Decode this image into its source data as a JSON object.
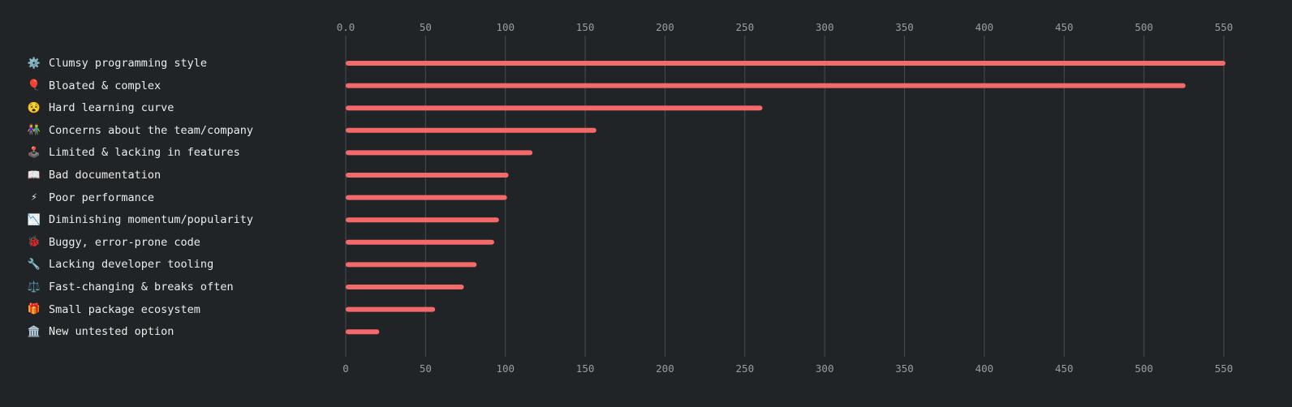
{
  "chart_data": {
    "type": "bar",
    "orientation": "horizontal",
    "bar_color": "#f46a6a",
    "grid": true,
    "xlim": [
      0,
      550
    ],
    "top_ticks": [
      "0.0",
      "50",
      "100",
      "150",
      "200",
      "250",
      "300",
      "350",
      "400",
      "450",
      "500",
      "550"
    ],
    "bottom_ticks": [
      "0",
      "50",
      "100",
      "150",
      "200",
      "250",
      "300",
      "350",
      "400",
      "450",
      "500",
      "550"
    ],
    "tick_values": [
      0,
      50,
      100,
      150,
      200,
      250,
      300,
      350,
      400,
      450,
      500,
      550
    ],
    "categories": [
      {
        "icon": "⚙️",
        "label": "Clumsy programming style"
      },
      {
        "icon": "🎈",
        "label": "Bloated & complex"
      },
      {
        "icon": "😵",
        "label": "Hard learning curve"
      },
      {
        "icon": "👫",
        "label": "Concerns about the team/company"
      },
      {
        "icon": "🕹️",
        "label": "Limited & lacking in features"
      },
      {
        "icon": "📖",
        "label": "Bad documentation"
      },
      {
        "icon": "⚡",
        "label": "Poor performance"
      },
      {
        "icon": "📉",
        "label": "Diminishing momentum/popularity"
      },
      {
        "icon": "🐞",
        "label": "Buggy, error-prone code"
      },
      {
        "icon": "🔧",
        "label": "Lacking developer tooling"
      },
      {
        "icon": "⚖️",
        "label": "Fast-changing & breaks often"
      },
      {
        "icon": "🎁",
        "label": "Small package ecosystem"
      },
      {
        "icon": "🏛️",
        "label": "New untested option"
      }
    ],
    "values": [
      551,
      526,
      261,
      157,
      117,
      102,
      101,
      96,
      93,
      82,
      74,
      56,
      21
    ]
  }
}
